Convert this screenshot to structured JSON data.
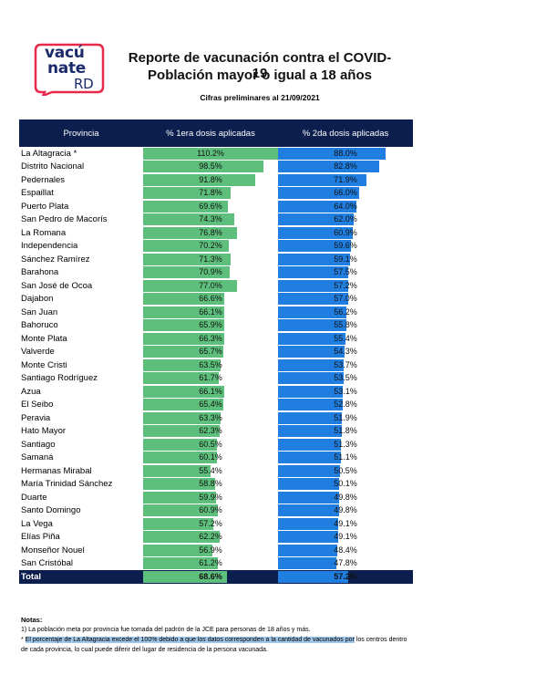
{
  "logo": {
    "line1": "vacú",
    "line2": "nate",
    "line3": "RD"
  },
  "header": {
    "title1": "Reporte de vacunación contra el COVID-19",
    "title2": "Población mayor o igual a 18 años",
    "subtitle": "Cifras preliminares al 21/09/2021"
  },
  "table": {
    "columns": [
      "Provincia",
      "% 1era dosis aplicadas",
      "% 2da dosis aplicadas"
    ],
    "colors": {
      "header": "#0c1e4d",
      "dose1": "#5dbf7b",
      "dose2": "#1f7ee0"
    },
    "bar_max": 110.2,
    "rows": [
      {
        "provincia": "La Altagracia *",
        "d1": 110.2,
        "d1_label": "110.2%",
        "d2": 88.0,
        "d2_label": "88.0%"
      },
      {
        "provincia": "Distrito Nacional",
        "d1": 98.5,
        "d1_label": "98.5%",
        "d2": 82.8,
        "d2_label": "82.8%"
      },
      {
        "provincia": "Pedernales",
        "d1": 91.8,
        "d1_label": "91.8%",
        "d2": 71.9,
        "d2_label": "71.9%"
      },
      {
        "provincia": "Espaillat",
        "d1": 71.8,
        "d1_label": "71.8%",
        "d2": 66.0,
        "d2_label": "66.0%"
      },
      {
        "provincia": "Puerto Plata",
        "d1": 69.6,
        "d1_label": "69.6%",
        "d2": 64.0,
        "d2_label": "64.0%"
      },
      {
        "provincia": "San Pedro de Macorís",
        "d1": 74.3,
        "d1_label": "74.3%",
        "d2": 62.0,
        "d2_label": "62.0%"
      },
      {
        "provincia": "La Romana",
        "d1": 76.8,
        "d1_label": "76.8%",
        "d2": 60.9,
        "d2_label": "60.9%"
      },
      {
        "provincia": "Independencia",
        "d1": 70.2,
        "d1_label": "70.2%",
        "d2": 59.6,
        "d2_label": "59.6%"
      },
      {
        "provincia": "Sánchez Ramírez",
        "d1": 71.3,
        "d1_label": "71.3%",
        "d2": 59.1,
        "d2_label": "59.1%"
      },
      {
        "provincia": "Barahona",
        "d1": 70.9,
        "d1_label": "70.9%",
        "d2": 57.5,
        "d2_label": "57.5%"
      },
      {
        "provincia": "San José de Ocoa",
        "d1": 77.0,
        "d1_label": "77.0%",
        "d2": 57.2,
        "d2_label": "57.2%"
      },
      {
        "provincia": "Dajabon",
        "d1": 66.6,
        "d1_label": "66.6%",
        "d2": 57.0,
        "d2_label": "57.0%"
      },
      {
        "provincia": "San Juan",
        "d1": 66.1,
        "d1_label": "66.1%",
        "d2": 56.2,
        "d2_label": "56.2%"
      },
      {
        "provincia": "Bahoruco",
        "d1": 65.9,
        "d1_label": "65.9%",
        "d2": 55.8,
        "d2_label": "55.8%"
      },
      {
        "provincia": "Monte Plata",
        "d1": 66.3,
        "d1_label": "66.3%",
        "d2": 55.4,
        "d2_label": "55.4%"
      },
      {
        "provincia": "Valverde",
        "d1": 65.7,
        "d1_label": "65.7%",
        "d2": 54.3,
        "d2_label": "54.3%"
      },
      {
        "provincia": "Monte Cristi",
        "d1": 63.5,
        "d1_label": "63.5%",
        "d2": 53.7,
        "d2_label": "53.7%"
      },
      {
        "provincia": "Santiago Rodríguez",
        "d1": 61.7,
        "d1_label": "61.7%",
        "d2": 53.5,
        "d2_label": "53.5%"
      },
      {
        "provincia": "Azua",
        "d1": 66.1,
        "d1_label": "66.1%",
        "d2": 53.1,
        "d2_label": "53.1%"
      },
      {
        "provincia": "El Seibo",
        "d1": 65.4,
        "d1_label": "65.4%",
        "d2": 52.8,
        "d2_label": "52.8%"
      },
      {
        "provincia": "Peravia",
        "d1": 63.3,
        "d1_label": "63.3%",
        "d2": 51.9,
        "d2_label": "51.9%"
      },
      {
        "provincia": "Hato Mayor",
        "d1": 62.3,
        "d1_label": "62.3%",
        "d2": 51.8,
        "d2_label": "51.8%"
      },
      {
        "provincia": "Santiago",
        "d1": 60.5,
        "d1_label": "60.5%",
        "d2": 51.3,
        "d2_label": "51.3%"
      },
      {
        "provincia": "Samaná",
        "d1": 60.1,
        "d1_label": "60.1%",
        "d2": 51.1,
        "d2_label": "51.1%"
      },
      {
        "provincia": "Hermanas Mirabal",
        "d1": 55.4,
        "d1_label": "55.4%",
        "d2": 50.5,
        "d2_label": "50.5%"
      },
      {
        "provincia": "María Trinidad Sánchez",
        "d1": 58.8,
        "d1_label": "58.8%",
        "d2": 50.1,
        "d2_label": "50.1%"
      },
      {
        "provincia": "Duarte",
        "d1": 59.9,
        "d1_label": "59.9%",
        "d2": 49.8,
        "d2_label": "49.8%"
      },
      {
        "provincia": "Santo Domingo",
        "d1": 60.9,
        "d1_label": "60.9%",
        "d2": 49.8,
        "d2_label": "49.8%"
      },
      {
        "provincia": "La Vega",
        "d1": 57.2,
        "d1_label": "57.2%",
        "d2": 49.1,
        "d2_label": "49.1%"
      },
      {
        "provincia": "Elías Piña",
        "d1": 62.2,
        "d1_label": "62.2%",
        "d2": 49.1,
        "d2_label": "49.1%"
      },
      {
        "provincia": "Monseñor Nouel",
        "d1": 56.9,
        "d1_label": "56.9%",
        "d2": 48.4,
        "d2_label": "48.4%"
      },
      {
        "provincia": "San Cristóbal",
        "d1": 61.2,
        "d1_label": "61.2%",
        "d2": 47.8,
        "d2_label": "47.8%"
      }
    ],
    "total": {
      "label": "Total",
      "d1": 68.6,
      "d1_label": "68.6%",
      "d2": 57.2,
      "d2_label": "57.2%"
    }
  },
  "notes": {
    "title": "Notas:",
    "note1": "1) La población meta por provincia fue tomada del padrón de la JCE para personas de 18 años y más.",
    "note2_prefix": "* ",
    "note2_highlight": "El porcentaje de La Altagracia excede el 100% debido a que los datos corresponden a la cantidad de vacunados por",
    "note2_rest": " los centros dentro de cada provincia, lo cual puede diferir del lugar de residencia de la persona vacunada."
  }
}
